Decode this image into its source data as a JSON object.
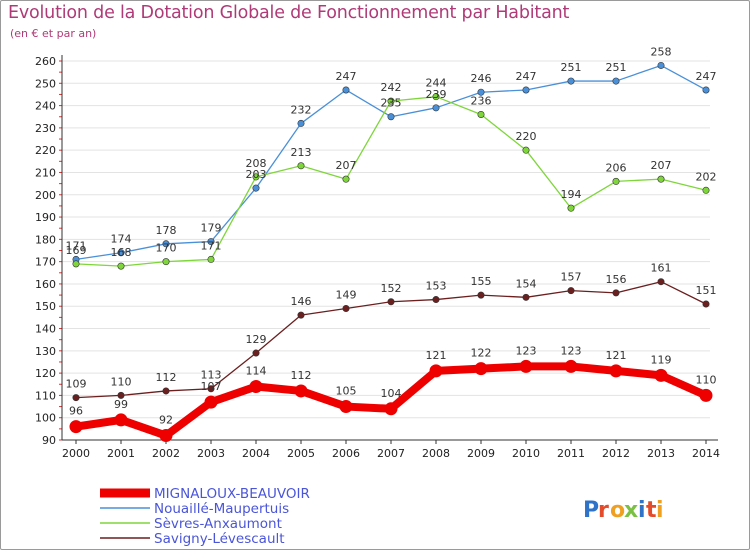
{
  "title": "Evolution de la Dotation Globale de Fonctionnement par Habitant",
  "subtitle": "(en € et par an)",
  "brand": "Proxiti",
  "chart_data": {
    "type": "line",
    "title": "Evolution de la Dotation Globale de Fonctionnement par Habitant",
    "subtitle": "(en € et par an)",
    "x": [
      2000,
      2001,
      2002,
      2003,
      2004,
      2005,
      2006,
      2007,
      2008,
      2009,
      2010,
      2011,
      2012,
      2013,
      2014
    ],
    "ylim": [
      90,
      260
    ],
    "yticks": [
      90,
      100,
      110,
      120,
      130,
      140,
      150,
      160,
      170,
      180,
      190,
      200,
      210,
      220,
      230,
      240,
      250,
      260
    ],
    "grid": "horizontal",
    "legend_position": "bottom-left",
    "series": [
      {
        "name": "MIGNALOUX-BEAUVOIR",
        "color": "#ee0000",
        "values": [
          96,
          99,
          92,
          107,
          114,
          112,
          105,
          104,
          121,
          122,
          123,
          123,
          121,
          119,
          110
        ]
      },
      {
        "name": "Nouaillé-Maupertuis",
        "color": "#4a90d9",
        "values": [
          171,
          174,
          178,
          179,
          203,
          232,
          247,
          235,
          239,
          246,
          247,
          251,
          251,
          258,
          247
        ]
      },
      {
        "name": "Sèvres-Anxaumont",
        "color": "#7ed63a",
        "values": [
          169,
          168,
          170,
          171,
          208,
          213,
          207,
          242,
          244,
          236,
          220,
          194,
          206,
          207,
          202
        ]
      },
      {
        "name": "Savigny-Lévescault",
        "color": "#6b1f1f",
        "values": [
          109,
          110,
          112,
          113,
          129,
          146,
          149,
          152,
          153,
          155,
          154,
          157,
          156,
          161,
          151
        ]
      }
    ],
    "labels": {
      "MIGNALOUX-BEAUVOIR": [
        "96",
        "99",
        "92",
        "107",
        "114",
        "112",
        "105",
        "104",
        "121",
        "122",
        "123",
        "123",
        "121",
        "119",
        "110"
      ],
      "Nouaillé-Maupertuis": [
        "171",
        "174",
        "178",
        "179",
        "203",
        "232",
        "247",
        "235",
        "239",
        "246",
        "247",
        "251",
        "251",
        "258",
        "247"
      ],
      "Sèvres-Anxaumont": [
        "169",
        "168",
        "170",
        "171",
        "208",
        "213",
        "207",
        "242",
        "244",
        "236",
        "220",
        "194",
        "206",
        "207",
        "202"
      ],
      "Savigny-Lévescault": [
        "109",
        "110",
        "112",
        "113",
        "129",
        "146",
        "149",
        "152",
        "153",
        "155",
        "154",
        "157",
        "156",
        "161",
        "151"
      ]
    }
  }
}
